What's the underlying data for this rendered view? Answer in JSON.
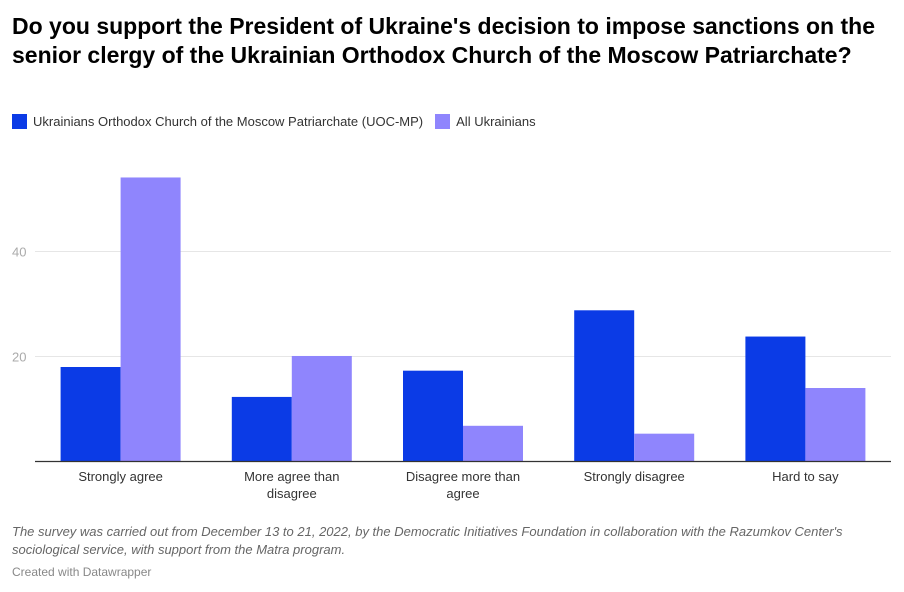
{
  "chart_data": {
    "type": "bar",
    "title": "Do you support the President of Ukraine's decision to impose sanctions on the senior clergy of the Ukrainian Orthodox Church of the Moscow Patriarchate?",
    "categories": [
      [
        "Strongly agree"
      ],
      [
        "More agree than",
        "disagree"
      ],
      [
        "Disagree more than",
        "agree"
      ],
      [
        "Strongly disagree"
      ],
      [
        "Hard to say"
      ]
    ],
    "series": [
      {
        "name": "Ukrainians Orthodox Church of the Moscow Patriarchate (UOC-MP)",
        "color": "#0b3be6",
        "values": [
          18,
          12.3,
          17.3,
          28.8,
          23.8
        ]
      },
      {
        "name": "All Ukrainians",
        "color": "#8f85fd",
        "values": [
          54.1,
          20.1,
          6.8,
          5.3,
          14
        ]
      }
    ],
    "yticks": [
      20,
      40
    ],
    "ylim": [
      0,
      58
    ],
    "xlabel": "",
    "ylabel": "",
    "grid": true,
    "legend": "top-left"
  },
  "notes": "The survey was carried out from December 13 to 21, 2022, by the Democratic Initiatives Foundation in collaboration with the Razumkov Center's sociological service, with support from the Matra program.",
  "credit": "Created with Datawrapper"
}
